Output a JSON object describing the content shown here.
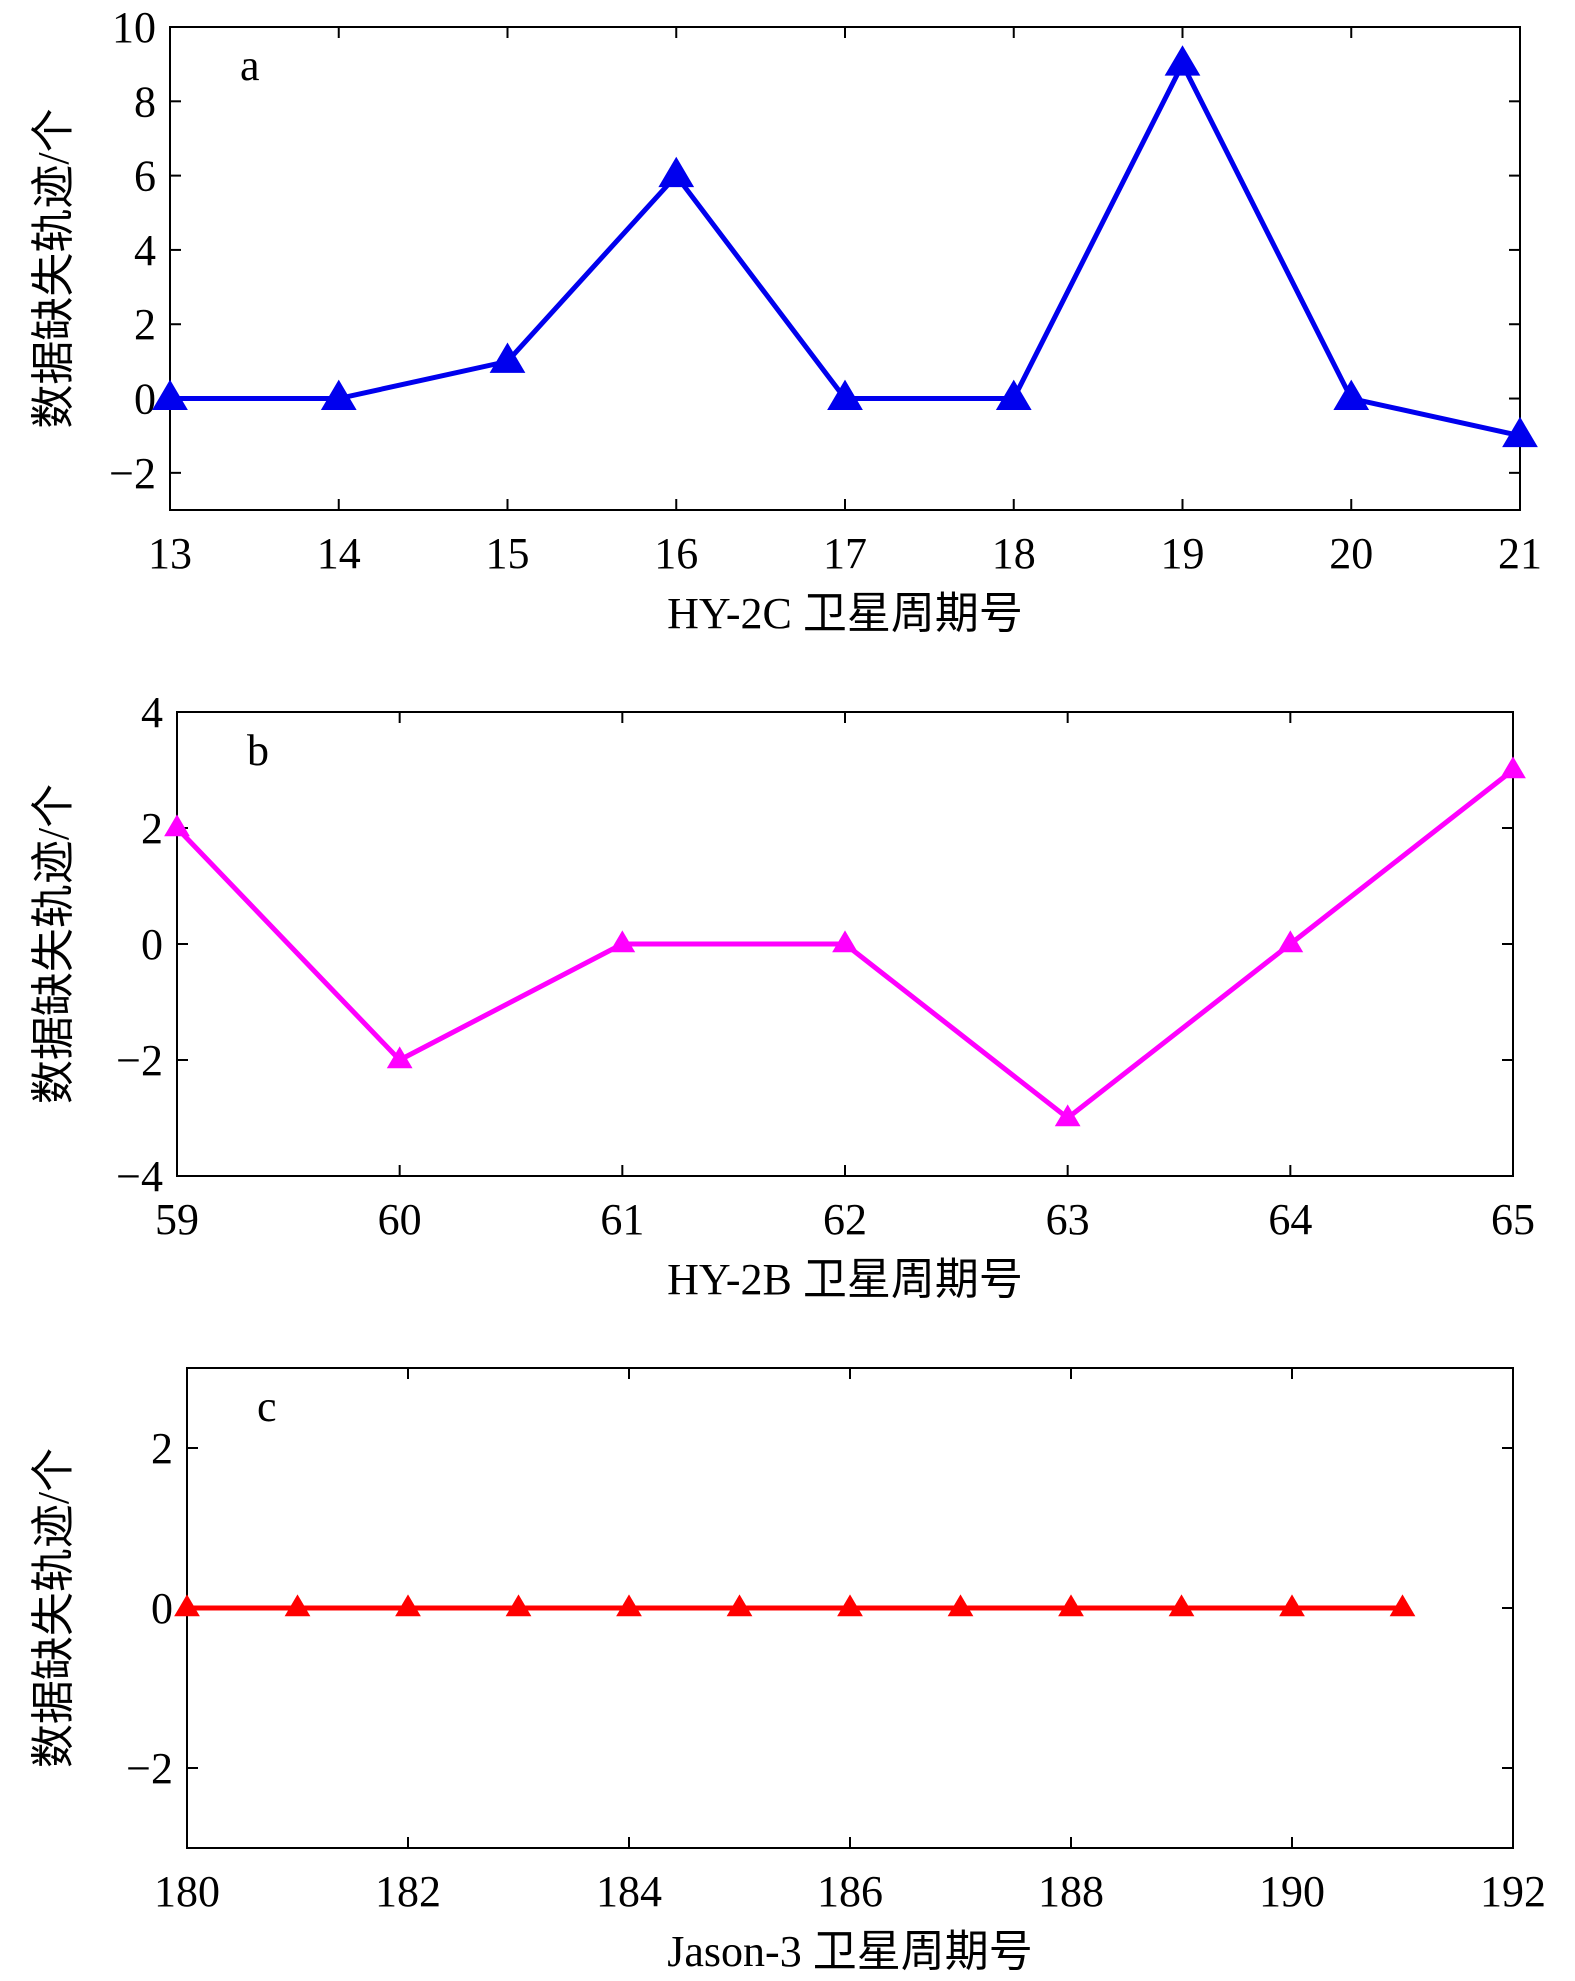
{
  "chart_data": [
    {
      "type": "line",
      "panel_label": "a",
      "xlabel": "HY-2C 卫星周期号",
      "ylabel": "数据缺失轨迹/个",
      "xlim": [
        13,
        21
      ],
      "ylim": [
        -3,
        10
      ],
      "xticks": [
        13,
        14,
        15,
        16,
        17,
        18,
        19,
        20,
        21
      ],
      "yticks": [
        -2,
        0,
        2,
        4,
        6,
        8,
        10
      ],
      "xtick_labels": [
        "13",
        "14",
        "15",
        "16",
        "17",
        "18",
        "19",
        "20",
        "21"
      ],
      "ytick_labels": [
        "−2",
        "0",
        "2",
        "4",
        "6",
        "8",
        "10"
      ],
      "color": "#0000ee",
      "marker": "triangle",
      "grid": false,
      "x": [
        13,
        14,
        15,
        16,
        17,
        18,
        19,
        20,
        21
      ],
      "y": [
        0,
        0,
        1,
        6,
        0,
        0,
        9,
        0,
        -1
      ]
    },
    {
      "type": "line",
      "panel_label": "b",
      "xlabel": "HY-2B 卫星周期号",
      "ylabel": "数据缺失轨迹/个",
      "xlim": [
        59,
        65
      ],
      "ylim": [
        -4,
        4
      ],
      "xticks": [
        59,
        60,
        61,
        62,
        63,
        64,
        65
      ],
      "yticks": [
        -4,
        -2,
        0,
        2,
        4
      ],
      "xtick_labels": [
        "59",
        "60",
        "61",
        "62",
        "63",
        "64",
        "65"
      ],
      "ytick_labels": [
        "−4",
        "−2",
        "0",
        "2",
        "4"
      ],
      "color": "#ff00ff",
      "marker": "triangle",
      "grid": false,
      "x": [
        59,
        60,
        61,
        62,
        63,
        64,
        65
      ],
      "y": [
        2,
        -2,
        0,
        0,
        -3,
        0,
        3
      ]
    },
    {
      "type": "line",
      "panel_label": "c",
      "xlabel": "Jason-3 卫星周期号",
      "ylabel": "数据缺失轨迹/个",
      "xlim": [
        180,
        192
      ],
      "ylim": [
        -3,
        3
      ],
      "xticks": [
        180,
        182,
        184,
        186,
        188,
        190,
        192
      ],
      "yticks": [
        -2,
        0,
        2
      ],
      "xtick_labels": [
        "180",
        "182",
        "184",
        "186",
        "188",
        "190",
        "192"
      ],
      "ytick_labels": [
        "−2",
        "0",
        "2"
      ],
      "color": "#ff0000",
      "marker": "triangle",
      "grid": false,
      "x": [
        180,
        181,
        182,
        183,
        184,
        185,
        186,
        187,
        188,
        189,
        190,
        191
      ],
      "y": [
        0,
        0,
        0,
        0,
        0,
        0,
        0,
        0,
        0,
        0,
        0,
        0
      ]
    }
  ]
}
